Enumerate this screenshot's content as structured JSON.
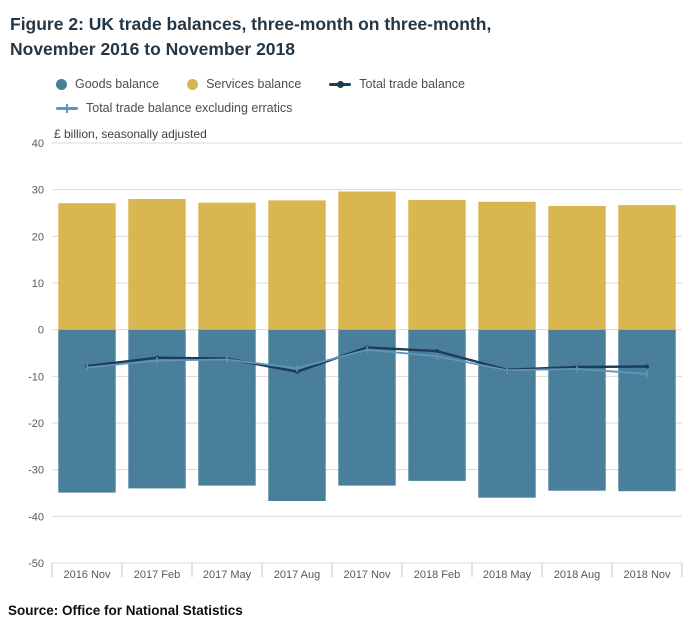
{
  "figure": {
    "title": "Figure 2: UK trade balances, three-month on three-month, November 2016 to November 2018",
    "subtitle": "£ billion, seasonally adjusted",
    "source": "Source: Office for National Statistics"
  },
  "colors": {
    "title": "#243746",
    "axis_text": "#595959",
    "gridline": "#d9d9d9",
    "boundary_tick": "#c6c6c6",
    "legend_text": "#4d4d4d",
    "subtitle_text": "#404040"
  },
  "chart_data": {
    "type": "bar",
    "title": "Figure 2: UK trade balances, three-month on three-month, November 2016 to November 2018",
    "subtitle": "£ billion, seasonally adjusted",
    "xlabel": "",
    "ylabel": "£ billion, seasonally adjusted",
    "ylim": [
      -50,
      40
    ],
    "ytick_step": 10,
    "grid": true,
    "legend_position": "top",
    "categories": [
      "2016 Nov",
      "2017 Feb",
      "2017 May",
      "2017 Aug",
      "2017 Nov",
      "2018 Feb",
      "2018 May",
      "2018 Aug",
      "2018 Nov"
    ],
    "series": [
      {
        "name": "Goods balance",
        "type": "bar",
        "marker": "none",
        "color": "#4a7f9b",
        "values": [
          -34.9,
          -34.0,
          -33.4,
          -36.7,
          -33.4,
          -32.4,
          -36.0,
          -34.5,
          -34.6
        ]
      },
      {
        "name": "Services balance",
        "type": "bar",
        "marker": "none",
        "color": "#d9b64f",
        "values": [
          27.1,
          28.0,
          27.2,
          27.7,
          29.6,
          27.8,
          27.4,
          26.5,
          26.7
        ]
      },
      {
        "name": "Total trade balance",
        "type": "line",
        "marker": "dot",
        "color": "#1d3d53",
        "values": [
          -7.8,
          -6.0,
          -6.2,
          -9.0,
          -3.8,
          -4.6,
          -8.6,
          -8.0,
          -7.9
        ]
      },
      {
        "name": "Total trade balance excluding erratics",
        "type": "line",
        "marker": "tick",
        "color": "#5e94bd",
        "values": [
          -8.1,
          -6.6,
          -6.4,
          -8.3,
          -4.3,
          -5.7,
          -8.7,
          -8.4,
          -9.5
        ]
      }
    ]
  }
}
